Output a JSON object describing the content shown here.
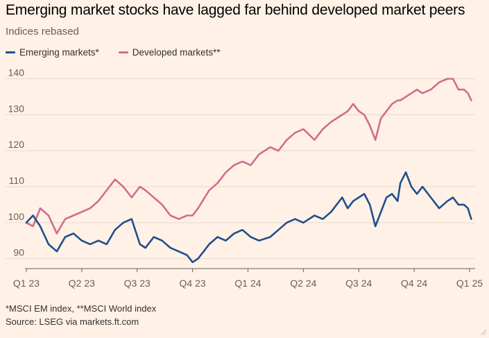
{
  "title": "Emerging market stocks have lagged far behind developed market peers",
  "subtitle": "Indices rebased",
  "footnote": "*MSCI EM index, **MSCI World index",
  "source": "Source: LSEG via markets.ft.com",
  "colors": {
    "background": "#fff1e5",
    "emerging": "#1f4e8c",
    "developed": "#d26b8f",
    "grid": "#e5d8ce",
    "axis": "#66605c"
  },
  "chart_data": {
    "type": "line",
    "title": "Emerging market stocks have lagged far behind developed market peers",
    "subtitle": "Indices rebased",
    "xlabel": "",
    "ylabel": "",
    "xlim": [
      0,
      8.05
    ],
    "ylim": [
      88,
      143
    ],
    "yticks": [
      90,
      100,
      110,
      120,
      130,
      140
    ],
    "x_tick_labels": [
      "Q1 23",
      "Q2 23",
      "Q3 23",
      "Q4 23",
      "Q1 24",
      "Q2 24",
      "Q3 24",
      "Q4 24",
      "Q1 25"
    ],
    "grid": true,
    "legend_position": "top-left",
    "series": [
      {
        "name": "Emerging markets*",
        "color": "#1f4e8c",
        "x": [
          0,
          0.12,
          0.25,
          0.4,
          0.55,
          0.7,
          0.85,
          1.0,
          1.15,
          1.3,
          1.45,
          1.6,
          1.75,
          1.9,
          2.05,
          2.15,
          2.3,
          2.45,
          2.6,
          2.75,
          2.9,
          3.0,
          3.1,
          3.3,
          3.45,
          3.6,
          3.75,
          3.9,
          4.05,
          4.2,
          4.4,
          4.55,
          4.7,
          4.85,
          5.0,
          5.2,
          5.35,
          5.5,
          5.6,
          5.7,
          5.8,
          5.9,
          6.0,
          6.1,
          6.2,
          6.3,
          6.4,
          6.5,
          6.6,
          6.7,
          6.75,
          6.85,
          6.95,
          7.05,
          7.15,
          7.3,
          7.45,
          7.6,
          7.7,
          7.8,
          7.9,
          7.97,
          8.03
        ],
        "values": [
          100,
          102,
          99,
          94,
          92,
          96,
          97,
          95,
          94,
          95,
          94,
          98,
          100,
          101,
          94,
          93,
          96,
          95,
          93,
          92,
          91,
          89,
          90,
          94,
          96,
          95,
          97,
          98,
          96,
          95,
          96,
          98,
          100,
          101,
          100,
          102,
          101,
          103,
          105,
          107,
          104,
          106,
          107,
          108,
          105,
          99,
          103,
          107,
          108,
          106,
          111,
          114,
          110,
          108,
          110,
          107,
          104,
          106,
          107,
          105,
          105,
          104,
          101
        ]
      },
      {
        "name": "Developed markets**",
        "color": "#d26b8f",
        "x": [
          0,
          0.12,
          0.25,
          0.4,
          0.55,
          0.7,
          0.85,
          1.0,
          1.15,
          1.3,
          1.45,
          1.6,
          1.75,
          1.9,
          2.05,
          2.15,
          2.3,
          2.45,
          2.6,
          2.75,
          2.9,
          3.0,
          3.1,
          3.3,
          3.45,
          3.6,
          3.75,
          3.9,
          4.05,
          4.2,
          4.4,
          4.55,
          4.7,
          4.85,
          5.0,
          5.2,
          5.35,
          5.5,
          5.6,
          5.7,
          5.8,
          5.9,
          6.0,
          6.1,
          6.2,
          6.3,
          6.4,
          6.5,
          6.6,
          6.7,
          6.75,
          6.85,
          6.95,
          7.05,
          7.15,
          7.3,
          7.45,
          7.6,
          7.7,
          7.8,
          7.9,
          7.97,
          8.03
        ],
        "values": [
          100,
          99,
          104,
          102,
          97,
          101,
          102,
          103,
          104,
          106,
          109,
          112,
          110,
          107,
          110,
          109,
          107,
          105,
          102,
          101,
          102,
          102,
          104,
          109,
          111,
          114,
          116,
          117,
          116,
          119,
          121,
          120,
          123,
          125,
          126,
          123,
          126,
          128,
          129,
          130,
          131,
          133,
          131,
          130,
          127,
          123,
          129,
          131,
          133,
          134,
          134,
          135,
          136,
          137,
          136,
          137,
          139,
          140,
          140,
          137,
          137,
          136,
          134
        ]
      }
    ]
  }
}
